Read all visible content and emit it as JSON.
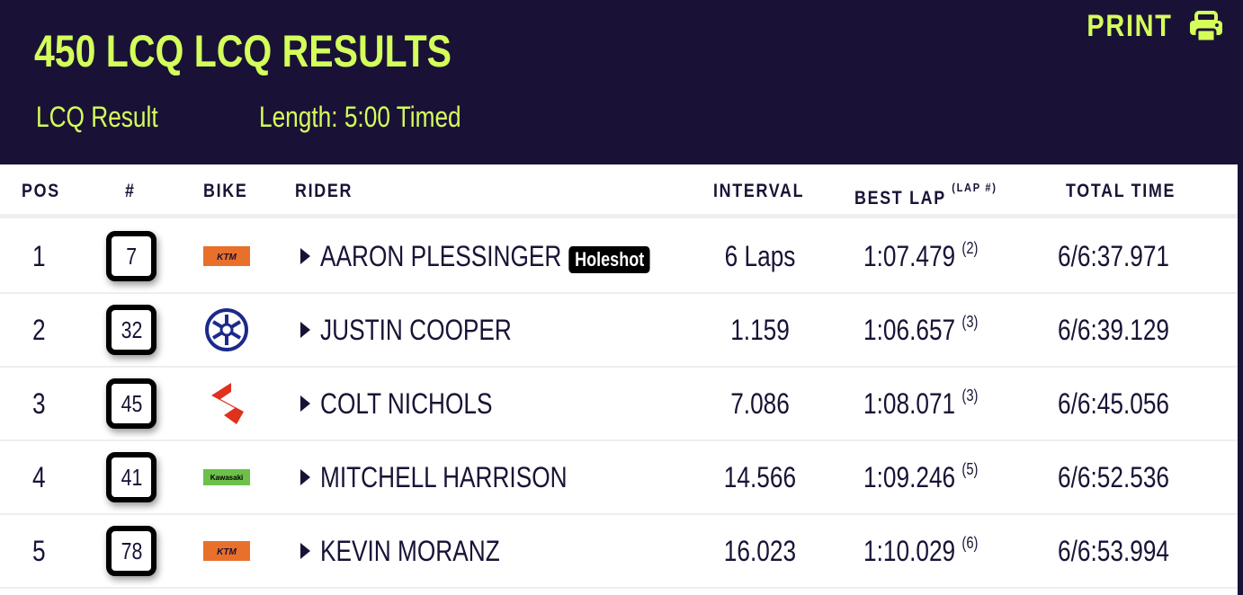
{
  "header": {
    "title": "450 LCQ LCQ RESULTS",
    "result_type": "LCQ Result",
    "length": "Length: 5:00 Timed",
    "print_label": "PRINT",
    "print_icon": "printer-icon"
  },
  "colors": {
    "header_bg": "#1a1236",
    "accent": "#d4ff5a"
  },
  "columns": {
    "pos": "POS",
    "num": "#",
    "bike": "BIKE",
    "rider": "RIDER",
    "interval": "INTERVAL",
    "best_lap": "BEST LAP",
    "lap_num": "(LAP #)",
    "total": "TOTAL TIME"
  },
  "rows": [
    {
      "pos": "1",
      "num": "7",
      "bike": "KTM",
      "rider": "AARON PLESSINGER",
      "badge": "Holeshot",
      "interval": "6 Laps",
      "best_lap": "1:07.479",
      "lap": "(2)",
      "total": "6/6:37.971"
    },
    {
      "pos": "2",
      "num": "32",
      "bike": "Yamaha",
      "rider": "JUSTIN COOPER",
      "interval": "1.159",
      "best_lap": "1:06.657",
      "lap": "(3)",
      "total": "6/6:39.129"
    },
    {
      "pos": "3",
      "num": "45",
      "bike": "Suzuki",
      "rider": "COLT NICHOLS",
      "interval": "7.086",
      "best_lap": "1:08.071",
      "lap": "(3)",
      "total": "6/6:45.056"
    },
    {
      "pos": "4",
      "num": "41",
      "bike": "Kawasaki",
      "rider": "MITCHELL HARRISON",
      "interval": "14.566",
      "best_lap": "1:09.246",
      "lap": "(5)",
      "total": "6/6:52.536"
    },
    {
      "pos": "5",
      "num": "78",
      "bike": "KTM",
      "rider": "KEVIN MORANZ",
      "interval": "16.023",
      "best_lap": "1:10.029",
      "lap": "(6)",
      "total": "6/6:53.994"
    }
  ]
}
